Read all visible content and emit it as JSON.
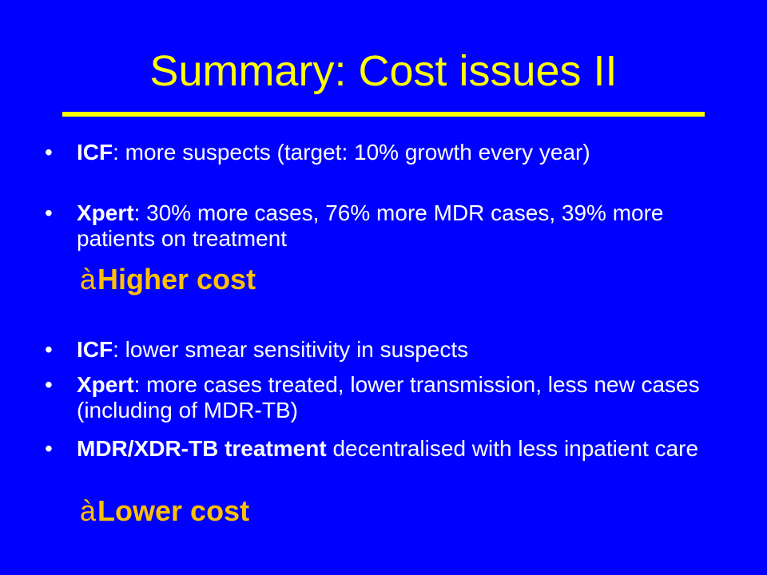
{
  "slide": {
    "title": "Summary: Cost issues II",
    "bullet_glyph": "•",
    "group1": [
      {
        "bold": "ICF",
        "rest": ": more suspects (target: 10% growth every year)"
      },
      {
        "bold": "Xpert",
        "rest": ": 30% more cases, 76% more MDR cases, 39% more patients on treatment"
      }
    ],
    "result1": {
      "arrow": "à",
      "label": "Higher cost"
    },
    "group2": [
      {
        "bold": "ICF",
        "rest": ": lower smear sensitivity in suspects"
      },
      {
        "bold": "Xpert",
        "rest": ": more cases treated, lower transmission, less new cases (including of MDR-TB)"
      },
      {
        "bold": "MDR/XDR-TB treatment",
        "rest": " decentralised with less inpatient care"
      }
    ],
    "result2": {
      "arrow": "à",
      "label": "Lower cost"
    },
    "colors": {
      "background": "#0000ff",
      "title": "#ffff00",
      "rule": "#ffff00",
      "body_text": "#ffffff",
      "result_text": "#ffc000"
    }
  }
}
